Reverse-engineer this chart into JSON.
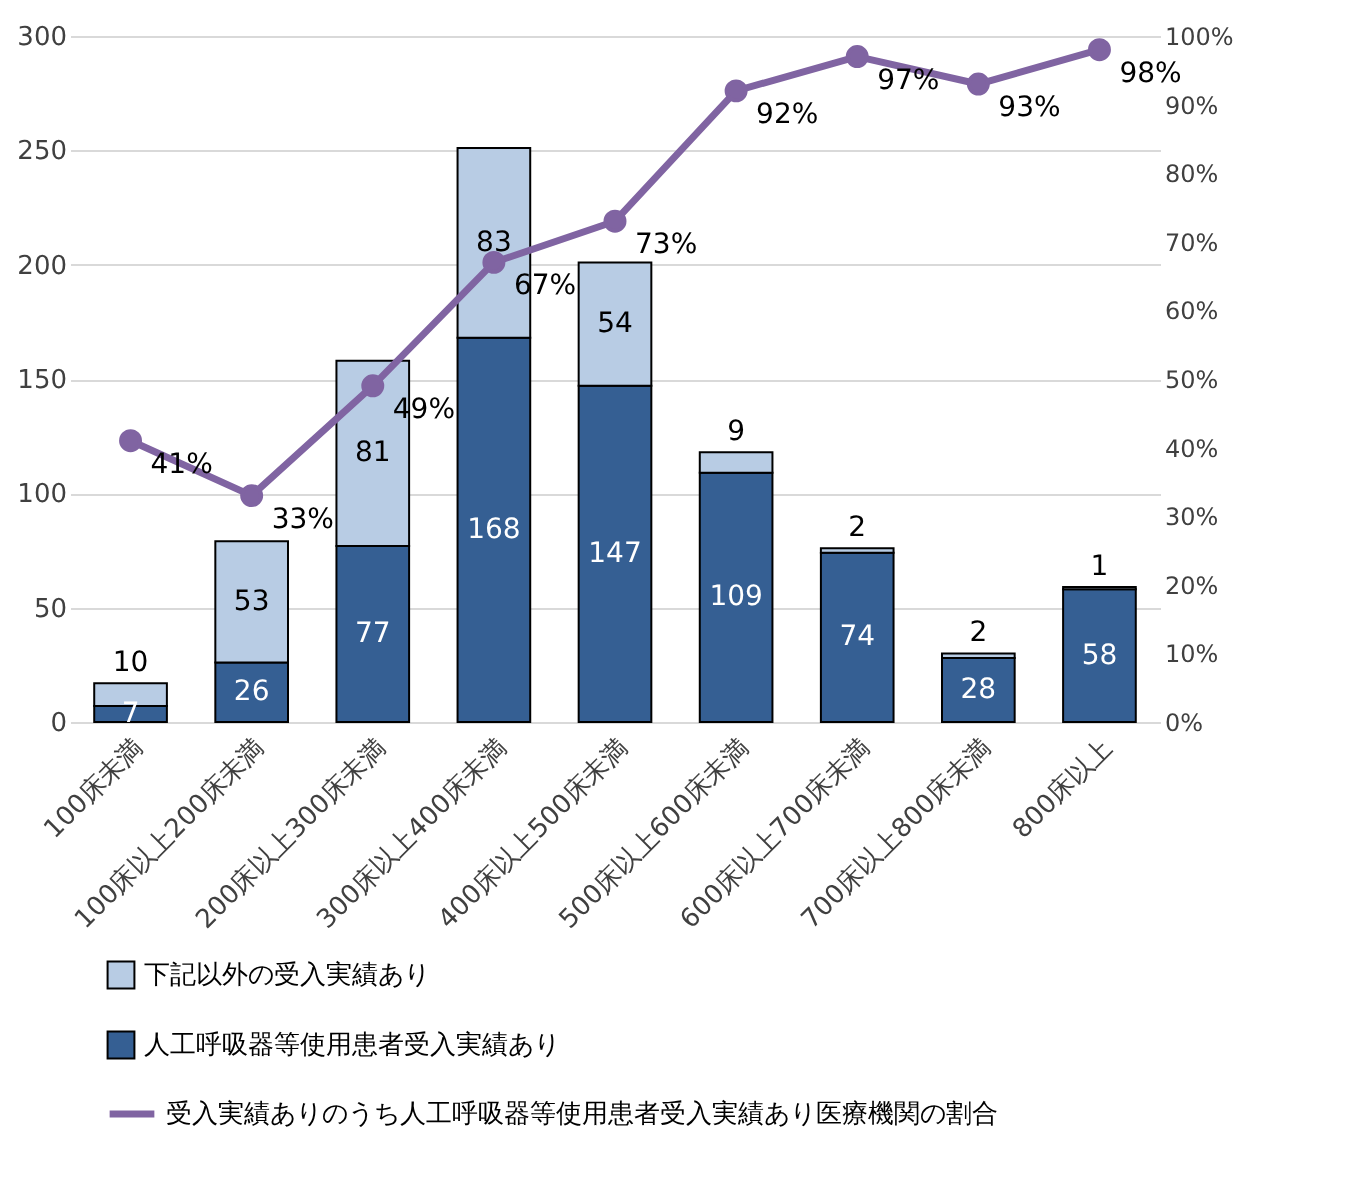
{
  "chart_data": {
    "type": "bar",
    "stacked": true,
    "categories": [
      "100床未満",
      "100床以上200床未満",
      "200床以上300床未満",
      "300床以上400床未満",
      "400床以上500床未満",
      "500床以上600床未満",
      "600床以上700床未満",
      "700床以上800床未満",
      "800床以上"
    ],
    "series": [
      {
        "name": "人工呼吸器等使用患者受入実績あり",
        "color": "#355f93",
        "values": [
          7,
          26,
          77,
          168,
          147,
          109,
          74,
          28,
          58
        ]
      },
      {
        "name": "下記以外の受入実績あり",
        "color": "#b8cce4",
        "values": [
          10,
          53,
          81,
          83,
          54,
          9,
          2,
          2,
          1
        ]
      },
      {
        "name": "受入実績ありのうち人工呼吸器等使用患者受入実績あり医療機関の割合",
        "type": "line",
        "axis": "y2",
        "color": "#8064a2",
        "marker": "circle",
        "values": [
          41,
          33,
          49,
          67,
          73,
          92,
          97,
          93,
          98
        ],
        "value_labels": [
          "41%",
          "33%",
          "49%",
          "67%",
          "73%",
          "92%",
          "97%",
          "93%",
          "98%"
        ]
      }
    ],
    "data_labels": true,
    "ylim": [
      0,
      300
    ],
    "yticks": [
      0,
      50,
      100,
      150,
      200,
      250,
      300
    ],
    "y2lim": [
      0,
      100
    ],
    "y2ticks": [
      {
        "value": 0,
        "label": "0%"
      },
      {
        "value": 10,
        "label": "10%"
      },
      {
        "value": 20,
        "label": "20%"
      },
      {
        "value": 30,
        "label": "30%"
      },
      {
        "value": 40,
        "label": "40%"
      },
      {
        "value": 50,
        "label": "50%"
      },
      {
        "value": 60,
        "label": "60%"
      },
      {
        "value": 70,
        "label": "70%"
      },
      {
        "value": 80,
        "label": "80%"
      },
      {
        "value": 90,
        "label": "90%"
      },
      {
        "value": 100,
        "label": "100%"
      }
    ],
    "grid": "y",
    "legend": "bottom"
  }
}
